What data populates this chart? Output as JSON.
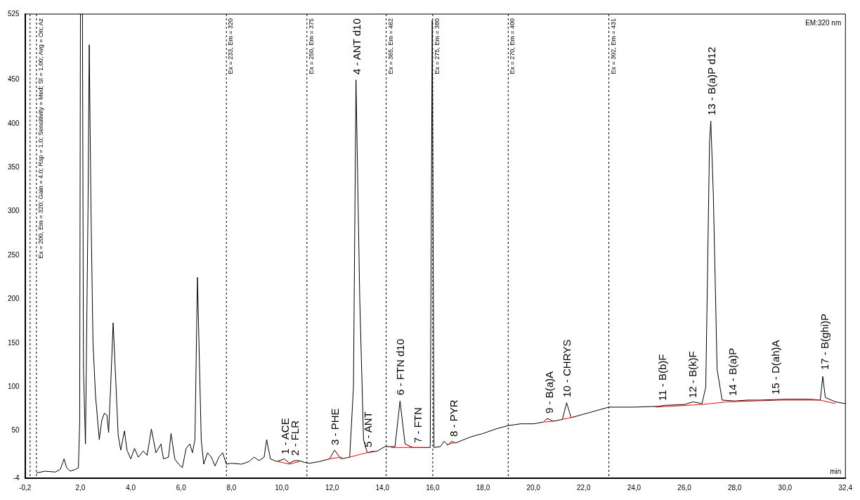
{
  "chart_data": {
    "type": "line",
    "xlabel": "min",
    "xlim": [
      -0.2,
      32.4
    ],
    "ylim": [
      -4,
      525
    ],
    "xticks": [
      {
        "value": -0.2,
        "label": "-0,2"
      },
      {
        "value": 2,
        "label": "2,0"
      },
      {
        "value": 4,
        "label": "4,0"
      },
      {
        "value": 6,
        "label": "6,0"
      },
      {
        "value": 8,
        "label": "8,0"
      },
      {
        "value": 10,
        "label": "10,0"
      },
      {
        "value": 12,
        "label": "12,0"
      },
      {
        "value": 14,
        "label": "14,0"
      },
      {
        "value": 16,
        "label": "16,0"
      },
      {
        "value": 18,
        "label": "18,0"
      },
      {
        "value": 20,
        "label": "20,0"
      },
      {
        "value": 22,
        "label": "22,0"
      },
      {
        "value": 24,
        "label": "24,0"
      },
      {
        "value": 26,
        "label": "26,0"
      },
      {
        "value": 28,
        "label": "28,0"
      },
      {
        "value": 30,
        "label": "30,0"
      },
      {
        "value": 32.4,
        "label": "32,4"
      }
    ],
    "yticks": [
      -4,
      50,
      100,
      150,
      200,
      250,
      300,
      350,
      400,
      450,
      525
    ],
    "grid": false,
    "legend": false,
    "marker": "none",
    "line_style": "solid",
    "series": [
      {
        "color": "#000000",
        "x": [
          0.25,
          0.6,
          1.0,
          1.2,
          1.3,
          1.35,
          1.45,
          1.6,
          1.8,
          1.92,
          1.97,
          2.0,
          2.08,
          2.12,
          2.2,
          2.3,
          2.35,
          2.42,
          2.5,
          2.6,
          2.75,
          2.85,
          2.95,
          3.05,
          3.12,
          3.2,
          3.3,
          3.4,
          3.5,
          3.6,
          3.75,
          3.85,
          4.0,
          4.15,
          4.3,
          4.5,
          4.65,
          4.82,
          5.0,
          5.2,
          5.3,
          5.5,
          5.6,
          5.75,
          5.9,
          6.05,
          6.2,
          6.35,
          6.45,
          6.55,
          6.65,
          6.8,
          6.9,
          7.05,
          7.2,
          7.35,
          7.5,
          7.65,
          7.8,
          8.0,
          8.4,
          8.7,
          8.9,
          9.1,
          9.3,
          9.4,
          9.55,
          9.8,
          10.1,
          10.3,
          10.5,
          10.7,
          10.9,
          11.1,
          11.5,
          11.9,
          12.1,
          12.35,
          12.7,
          12.85,
          12.95,
          13.1,
          13.25,
          13.4,
          13.8,
          14.1,
          14.5,
          14.7,
          14.9,
          15.2,
          15.9,
          15.98,
          16.05,
          16.3,
          16.45,
          16.6,
          16.75,
          16.9,
          17.5,
          18.0,
          18.5,
          19.0,
          19.5,
          20.0,
          20.4,
          20.55,
          20.8,
          21.15,
          21.32,
          21.5,
          22.0,
          22.5,
          23.0,
          24.0,
          25.0,
          25.2,
          26.0,
          26.35,
          26.7,
          26.85,
          27.0,
          27.05,
          27.15,
          27.3,
          27.5,
          28.0,
          28.5,
          29.0,
          30.0,
          31.0,
          31.4,
          31.5,
          31.6,
          32.0,
          32.4
        ],
        "values": [
          2,
          4,
          3,
          6,
          14,
          18,
          8,
          4,
          6,
          8,
          60,
          525,
          525,
          120,
          35,
          300,
          490,
          300,
          150,
          90,
          40,
          62,
          70,
          68,
          48,
          100,
          173,
          110,
          45,
          28,
          50,
          28,
          18,
          30,
          20,
          27,
          22,
          52,
          25,
          35,
          18,
          20,
          47,
          18,
          12,
          8,
          30,
          35,
          25,
          40,
          225,
          40,
          12,
          25,
          20,
          10,
          20,
          25,
          12,
          13,
          12,
          15,
          20,
          16,
          20,
          40,
          18,
          15,
          18,
          13,
          16,
          16,
          14,
          13,
          15,
          18,
          28,
          18,
          20,
          100,
          450,
          200,
          40,
          25,
          27,
          32,
          32,
          84,
          35,
          31,
          31,
          518,
          31,
          32,
          38,
          34,
          38,
          36,
          43,
          47,
          52,
          56,
          58,
          58,
          60,
          64,
          61,
          63,
          82,
          65,
          69,
          73,
          77,
          77,
          78,
          79,
          80,
          83,
          81,
          100,
          380,
          403,
          320,
          120,
          85,
          84,
          85,
          85,
          86,
          86,
          85,
          112,
          88,
          83,
          81
        ]
      },
      {
        "color": "#ff0000",
        "x": [
          9.85,
          10.3,
          10.7,
          10.71,
          11.85,
          12.4,
          12.41,
          12.7,
          13.65,
          13.66,
          14.35,
          15.6,
          15.61,
          16.55,
          16.9,
          16.91,
          20.45,
          20.8,
          20.81,
          21.15,
          21.65,
          21.66,
          24.85,
          26.7,
          27.7,
          29.8,
          31.4,
          32.0
        ],
        "values": [
          15,
          12,
          15,
          null,
          18,
          20,
          null,
          20,
          27,
          null,
          31,
          31,
          null,
          34,
          37,
          null,
          60,
          61,
          null,
          63,
          66,
          null,
          77,
          80,
          83,
          85,
          85,
          81
        ]
      }
    ],
    "ref_lines": [
      {
        "axis": "x",
        "value": 0.0,
        "line_style": "dashed",
        "color": "#000000"
      },
      {
        "axis": "x",
        "value": 0.25,
        "line_style": "dashed",
        "color": "#000000"
      },
      {
        "axis": "x",
        "value": 7.8,
        "line_style": "dashed",
        "color": "#000000"
      },
      {
        "axis": "x",
        "value": 11.0,
        "line_style": "dashed",
        "color": "#000000"
      },
      {
        "axis": "x",
        "value": 14.15,
        "line_style": "dashed",
        "color": "#000000"
      },
      {
        "axis": "x",
        "value": 16.0,
        "line_style": "dashed",
        "color": "#000000"
      },
      {
        "axis": "x",
        "value": 19.0,
        "line_style": "dashed",
        "color": "#000000"
      },
      {
        "axis": "x",
        "value": 23.0,
        "line_style": "dashed",
        "color": "#000000"
      }
    ],
    "annotations": [
      "EM:320 nm",
      {
        "text": "Ex = 200, Em = 320; Gain = 4.0; Rsp = 1.0; Sensitivity = Med; St = 1.00; Avg = On; Az",
        "x": 0.25,
        "y": 525
      },
      {
        "text": "Ex = 233, Em = 320",
        "x": 7.8,
        "y": 525
      },
      {
        "text": "Ex = 250, Em = 375",
        "x": 11.0,
        "y": 525
      },
      {
        "text": "Ex = 365, Em = 462",
        "x": 14.15,
        "y": 525
      },
      {
        "text": "Ex = 275, Em = 380",
        "x": 16.0,
        "y": 525
      },
      {
        "text": "Ex = 270, Em = 400",
        "x": 19.0,
        "y": 525
      },
      {
        "text": "Ex = 302, Em = 431",
        "x": 23.0,
        "y": 525
      },
      {
        "text": "1 - ACE",
        "x": 10.1,
        "y": 17
      },
      {
        "text": "2 - FLR",
        "x": 10.5,
        "y": 15
      },
      {
        "text": "3 - PHE",
        "x": 12.1,
        "y": 27
      },
      {
        "text": "4 - ANT d10",
        "x": 12.95,
        "y": 450
      },
      {
        "text": "5 - ANT",
        "x": 13.4,
        "y": 25
      },
      {
        "text": "6 - FTN d10",
        "x": 14.7,
        "y": 84
      },
      {
        "text": "7 - FTN",
        "x": 15.4,
        "y": 30
      },
      {
        "text": "8 - PYR",
        "x": 16.8,
        "y": 37
      },
      {
        "text": "9 - B(a)A",
        "x": 20.6,
        "y": 63
      },
      {
        "text": "10 - CHRYS",
        "x": 21.3,
        "y": 82
      },
      {
        "text": "11 - B(b)F",
        "x": 25.1,
        "y": 78
      },
      {
        "text": "12 - B(k)F",
        "x": 26.3,
        "y": 81
      },
      {
        "text": "13 - B(a)P d12",
        "x": 27.05,
        "y": 403
      },
      {
        "text": "14 - B(a)P",
        "x": 27.9,
        "y": 83
      },
      {
        "text": "15 - D(ah)A",
        "x": 29.6,
        "y": 85
      },
      {
        "text": "17 - B(ghi)P",
        "x": 31.55,
        "y": 113
      }
    ]
  }
}
